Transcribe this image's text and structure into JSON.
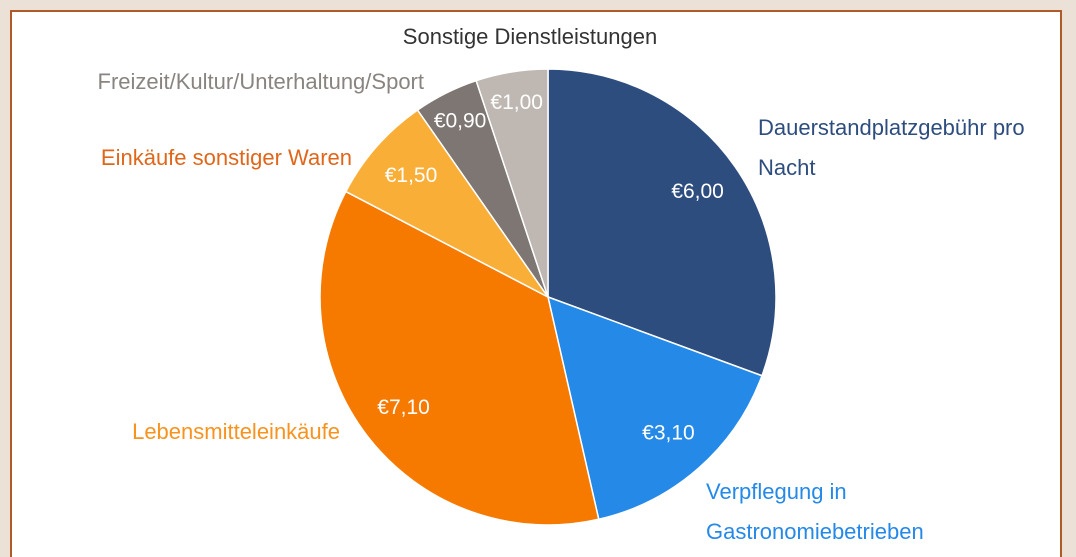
{
  "chart_data": {
    "type": "pie",
    "categories": [
      "Dauerstandplatzgebühr pro Nacht",
      "Verpflegung in Gastronomiebetrieben",
      "Lebensmitteleinkäufe",
      "Einkäufe sonstiger Waren",
      "Freizeit/Kultur/Unterhaltung/Sport",
      "Sonstige Dienstleistungen"
    ],
    "values": [
      6.0,
      3.1,
      7.1,
      1.5,
      0.9,
      1.0
    ],
    "value_labels": [
      "€6,00",
      "€3,10",
      "€7,10",
      "€1,50",
      "€0,90",
      "€1,00"
    ],
    "colors": [
      "#2e4d7f",
      "#2589e8",
      "#f67a00",
      "#f9ae37",
      "#7e7672",
      "#bfb7b1"
    ],
    "label_colors": [
      "#2e4d7f",
      "#2589e8",
      "#f7931e",
      "#e0661a",
      "#8a8480",
      "#333333"
    ]
  }
}
